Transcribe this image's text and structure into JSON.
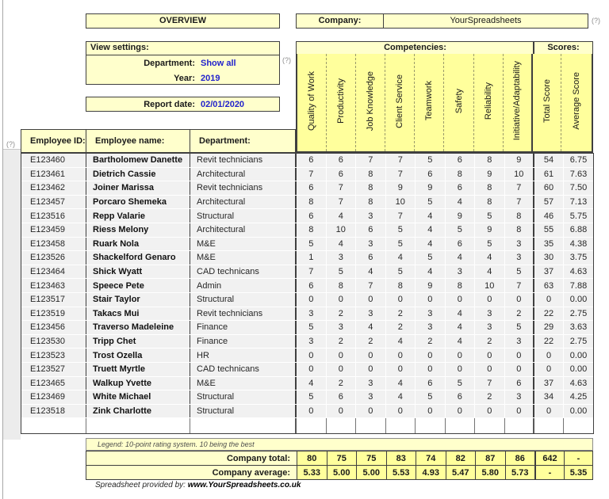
{
  "header": {
    "overview_title": "OVERVIEW",
    "company_label": "Company:",
    "company_value": "YourSpreadsheets",
    "help_marker": "(?)"
  },
  "view_settings": {
    "title": "View settings:",
    "department_label": "Department:",
    "department_value": "Show all",
    "year_label": "Year:",
    "year_value": "2019",
    "report_date_label": "Report date:",
    "report_date_value": "02/01/2020"
  },
  "table": {
    "competencies_label": "Competencies:",
    "scores_label": "Scores:",
    "competency_columns": [
      "Quality of Work",
      "Productivity",
      "Job Knowledge",
      "Client Service",
      "Teamwork",
      "Safety",
      "Reliability",
      "Initiative/Adaptability"
    ],
    "score_columns": [
      "Total Score",
      "Average Score"
    ],
    "employee_columns": [
      "Employee ID:",
      "Employee name:",
      "Department:"
    ],
    "rows": [
      {
        "id": "E123460",
        "name": "Bartholomew Danette",
        "dept": "Revit technicians",
        "scores": [
          6,
          6,
          7,
          7,
          5,
          6,
          8,
          9
        ],
        "total": "54",
        "avg": "6.75"
      },
      {
        "id": "E123461",
        "name": "Dietrich Cassie",
        "dept": "Architectural",
        "scores": [
          7,
          6,
          8,
          7,
          6,
          8,
          9,
          10
        ],
        "total": "61",
        "avg": "7.63"
      },
      {
        "id": "E123462",
        "name": "Joiner Marissa",
        "dept": "Revit technicians",
        "scores": [
          6,
          7,
          8,
          9,
          9,
          6,
          8,
          7
        ],
        "total": "60",
        "avg": "7.50"
      },
      {
        "id": "E123457",
        "name": "Porcaro Shemeka",
        "dept": "Architectural",
        "scores": [
          8,
          7,
          8,
          10,
          5,
          4,
          8,
          7
        ],
        "total": "57",
        "avg": "7.13"
      },
      {
        "id": "E123516",
        "name": "Repp Valarie",
        "dept": "Structural",
        "scores": [
          6,
          4,
          3,
          7,
          4,
          9,
          5,
          8
        ],
        "total": "46",
        "avg": "5.75"
      },
      {
        "id": "E123459",
        "name": "Riess Melony",
        "dept": "Architectural",
        "scores": [
          8,
          10,
          6,
          5,
          4,
          5,
          9,
          8
        ],
        "total": "55",
        "avg": "6.88"
      },
      {
        "id": "E123458",
        "name": "Ruark Nola",
        "dept": "M&E",
        "scores": [
          5,
          4,
          3,
          5,
          4,
          6,
          5,
          3
        ],
        "total": "35",
        "avg": "4.38"
      },
      {
        "id": "E123526",
        "name": "Shackelford Genaro",
        "dept": "M&E",
        "scores": [
          1,
          3,
          6,
          4,
          5,
          4,
          4,
          3
        ],
        "total": "30",
        "avg": "3.75"
      },
      {
        "id": "E123464",
        "name": "Shick Wyatt",
        "dept": "CAD technicans",
        "scores": [
          7,
          5,
          4,
          5,
          4,
          3,
          4,
          5
        ],
        "total": "37",
        "avg": "4.63"
      },
      {
        "id": "E123463",
        "name": "Speece Pete",
        "dept": "Admin",
        "scores": [
          6,
          8,
          7,
          8,
          9,
          8,
          10,
          7
        ],
        "total": "63",
        "avg": "7.88"
      },
      {
        "id": "E123517",
        "name": "Stair Taylor",
        "dept": "Structural",
        "scores": [
          0,
          0,
          0,
          0,
          0,
          0,
          0,
          0
        ],
        "total": "0",
        "avg": "0.00"
      },
      {
        "id": "E123519",
        "name": "Takacs Mui",
        "dept": "Revit technicians",
        "scores": [
          3,
          2,
          3,
          2,
          3,
          4,
          3,
          2
        ],
        "total": "22",
        "avg": "2.75"
      },
      {
        "id": "E123456",
        "name": "Traverso Madeleine",
        "dept": "Finance",
        "scores": [
          5,
          3,
          4,
          2,
          3,
          4,
          3,
          5
        ],
        "total": "29",
        "avg": "3.63"
      },
      {
        "id": "E123530",
        "name": "Tripp Chet",
        "dept": "Finance",
        "scores": [
          3,
          2,
          2,
          4,
          2,
          4,
          2,
          3
        ],
        "total": "22",
        "avg": "2.75"
      },
      {
        "id": "E123523",
        "name": "Trost Ozella",
        "dept": "HR",
        "scores": [
          0,
          0,
          0,
          0,
          0,
          0,
          0,
          0
        ],
        "total": "0",
        "avg": "0.00"
      },
      {
        "id": "E123527",
        "name": "Truett Myrtle",
        "dept": "CAD technicans",
        "scores": [
          0,
          0,
          0,
          0,
          0,
          0,
          0,
          0
        ],
        "total": "0",
        "avg": "0.00"
      },
      {
        "id": "E123465",
        "name": "Walkup Yvette",
        "dept": "M&E",
        "scores": [
          4,
          2,
          3,
          4,
          6,
          5,
          7,
          6
        ],
        "total": "37",
        "avg": "4.63"
      },
      {
        "id": "E123469",
        "name": "White Michael",
        "dept": "Structural",
        "scores": [
          5,
          6,
          3,
          4,
          5,
          6,
          2,
          3
        ],
        "total": "34",
        "avg": "4.25"
      },
      {
        "id": "E123518",
        "name": "Zink Charlotte",
        "dept": "Structural",
        "scores": [
          0,
          0,
          0,
          0,
          0,
          0,
          0,
          0
        ],
        "total": "0",
        "avg": "0.00"
      }
    ],
    "legend": "Legend: 10-point rating system. 10 being the best",
    "totals": {
      "total_label": "Company total:",
      "total_values": [
        "80",
        "75",
        "75",
        "83",
        "74",
        "82",
        "87",
        "86"
      ],
      "total_sum": "642",
      "total_avg": "-",
      "average_label": "Company average:",
      "average_values": [
        "5.33",
        "5.00",
        "5.00",
        "5.53",
        "4.93",
        "5.47",
        "5.80",
        "5.73"
      ],
      "average_sum": "-",
      "average_avg": "5.35"
    }
  },
  "footer": {
    "provided_by": "Spreadsheet provided by:",
    "url": "www.YourSpreadsheets.co.uk"
  },
  "colors": {
    "pale_yellow": "#FFFFCC",
    "header_yellow": "#FFFF9C",
    "row_gray": "#F1F1F1",
    "border_dark": "#3F3F3F",
    "link_blue": "#2222CC",
    "help_gray": "#8C8C8C"
  }
}
